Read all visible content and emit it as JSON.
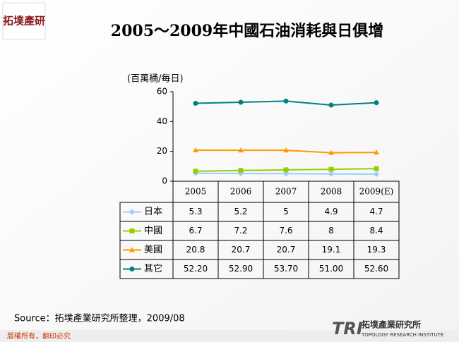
{
  "logo": {
    "corner": "拓墣產研",
    "mark": "TRI",
    "name": "拓墣產業研究所",
    "english": "TOPOLOGY RESEARCH INSTITUTE"
  },
  "chart_data": {
    "type": "line",
    "title": "2005～2009年中國石油消耗與日俱增",
    "y_label": "(百萬桶/每日)",
    "categories": [
      "2005",
      "2006",
      "2007",
      "2008",
      "2009(E)"
    ],
    "series": [
      {
        "name": "日本",
        "color": "#99ccff",
        "marker": "diamond",
        "values": [
          5.3,
          5.2,
          5,
          4.9,
          4.7
        ]
      },
      {
        "name": "中國",
        "color": "#99cc00",
        "marker": "square",
        "values": [
          6.7,
          7.2,
          7.6,
          8,
          8.4
        ]
      },
      {
        "name": "美國",
        "color": "#ff9900",
        "marker": "triangle",
        "values": [
          20.8,
          20.7,
          20.7,
          19.1,
          19.3
        ]
      },
      {
        "name": "其它",
        "color": "#008080",
        "marker": "circle",
        "values": [
          52.2,
          52.9,
          53.7,
          51,
          52.6
        ],
        "value_labels": [
          "52.20",
          "52.90",
          "53.70",
          "51.00",
          "52.60"
        ]
      }
    ],
    "ylim": [
      0,
      60
    ],
    "yticks": [
      0,
      20,
      40,
      60
    ]
  },
  "source": "Source：拓墣產業研究所整理，2009/08",
  "footer": "版權所有，翻印必究"
}
